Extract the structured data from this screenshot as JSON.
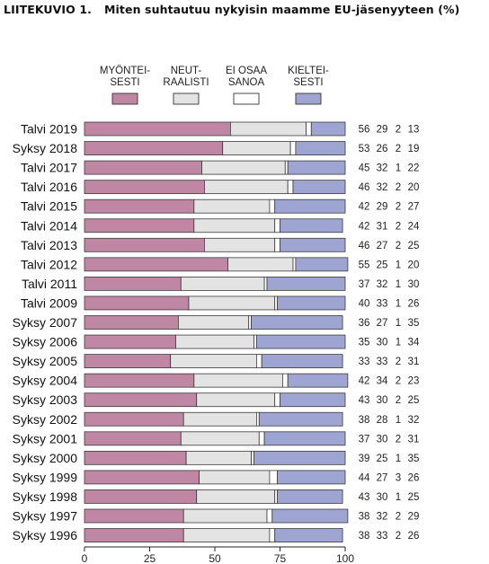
{
  "figure": {
    "number": "LIITEKUVIO 1.",
    "title": "Miten suhtautuu nykyisin maamme EU-jäsenyyteen (%)"
  },
  "chart_data": {
    "type": "bar",
    "orientation": "horizontal",
    "stacked": true,
    "title": "Miten suhtautuu nykyisin maamme EU-jäsenyyteen (%)",
    "xlabel": "",
    "ylabel": "",
    "xlim": [
      0,
      100
    ],
    "xticks": [
      0,
      25,
      50,
      75,
      100
    ],
    "grid": false,
    "legend_position": "top",
    "categories": [
      "Talvi 2019",
      "Syksy 2018",
      "Talvi 2017",
      "Talvi 2016",
      "Talvi 2015",
      "Talvi 2014",
      "Talvi 2013",
      "Talvi 2012",
      "Talvi 2011",
      "Talvi 2009",
      "Syksy 2007",
      "Syksy 2006",
      "Syksy 2005",
      "Syksy 2004",
      "Syksy 2003",
      "Syksy 2002",
      "Syksy 2001",
      "Syksy 2000",
      "Syksy 1999",
      "Syksy 1998",
      "Syksy 1997",
      "Syksy 1996"
    ],
    "series": [
      {
        "name": "MYÖNTEI-SESTI",
        "legend_lines": [
          "MYÖNTEI-",
          "SESTI"
        ],
        "color": "#bf87a4",
        "values": [
          56,
          53,
          45,
          46,
          42,
          42,
          46,
          55,
          37,
          40,
          36,
          35,
          33,
          42,
          43,
          38,
          37,
          39,
          44,
          43,
          38,
          38
        ]
      },
      {
        "name": "NEUT-RAALISTI",
        "legend_lines": [
          "NEUT-",
          "RAALISTI"
        ],
        "color": "#e3e3e3",
        "values": [
          29,
          26,
          32,
          32,
          29,
          31,
          27,
          25,
          32,
          33,
          27,
          30,
          33,
          34,
          30,
          28,
          30,
          25,
          27,
          30,
          32,
          33
        ]
      },
      {
        "name": "EI OSAA SANOA",
        "legend_lines": [
          "EI OSAA",
          "SANOA"
        ],
        "color": "#ffffff",
        "values": [
          2,
          2,
          1,
          2,
          2,
          2,
          2,
          1,
          1,
          1,
          1,
          1,
          2,
          2,
          2,
          1,
          2,
          1,
          3,
          1,
          2,
          2
        ]
      },
      {
        "name": "KIELTEI-SESTI",
        "legend_lines": [
          "KIELTEI-",
          "SESTI"
        ],
        "color": "#9fa5d3",
        "values": [
          13,
          19,
          22,
          20,
          27,
          24,
          25,
          20,
          30,
          26,
          35,
          34,
          31,
          23,
          25,
          32,
          31,
          35,
          26,
          25,
          29,
          26
        ]
      }
    ]
  }
}
